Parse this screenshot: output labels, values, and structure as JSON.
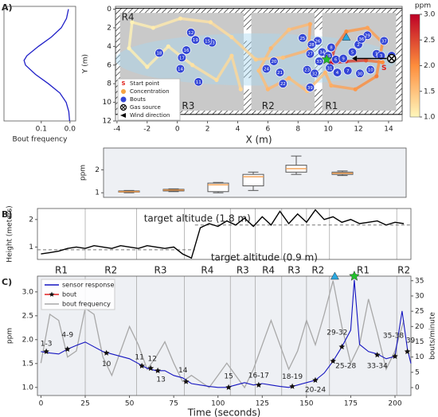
{
  "chart_data": [
    {
      "type": "line",
      "orientation": "vertical",
      "panel_label": "A)",
      "xlabel": "Bout frequency",
      "color": "#1f1fc8",
      "xlim": [
        0.23,
        -0.02
      ],
      "xticks": [
        0.1,
        {
          "value": 0,
          "label": "0.0"
        }
      ],
      "ylim": [
        12,
        -0.3
      ],
      "y": [
        0,
        1,
        2,
        3,
        4,
        5,
        5.5,
        6,
        7,
        8,
        9,
        10,
        11,
        12
      ],
      "values": [
        0.005,
        0.012,
        0.03,
        0.065,
        0.11,
        0.15,
        0.16,
        0.155,
        0.12,
        0.075,
        0.035,
        0.013,
        0.004,
        0.001
      ]
    },
    {
      "type": "map",
      "xlabel": "X (m)",
      "ylabel": "Y (m)",
      "xlim": [
        -4.1,
        14.9
      ],
      "xticks": [
        -4,
        -2,
        0,
        2,
        4,
        6,
        8,
        10,
        12,
        14
      ],
      "ylim": [
        12,
        -0.3
      ],
      "yticks": [
        0,
        2,
        4,
        6,
        8,
        10,
        12
      ],
      "rooms": [
        "R4",
        "R3",
        "R2",
        "R1"
      ],
      "trajectory": {
        "name": "Concentration",
        "color": "#f5a442",
        "x": [
          13.6,
          12.5,
          11.2,
          10.2,
          10.4,
          11.2,
          12.6,
          13.6,
          13.2,
          11.8,
          10.2,
          9.8,
          8.6,
          7.4,
          6.0,
          5.4,
          6.2,
          7.4,
          8.8,
          8.7,
          7.0,
          5.2,
          3.6,
          2.2,
          0.2,
          -1.6,
          -3.0,
          -3.2,
          -2.0,
          -0.6,
          1.0,
          2.6,
          3.6,
          4.2
        ],
        "y": [
          5.7,
          5.5,
          5.6,
          5.8,
          4.2,
          2.4,
          2.0,
          3.6,
          7.2,
          8.6,
          8.2,
          6.8,
          8.8,
          7.4,
          8.6,
          6.6,
          4.2,
          2.2,
          1.6,
          4.4,
          5.2,
          5.4,
          3.0,
          1.4,
          1.0,
          2.0,
          1.4,
          4.2,
          6.2,
          4.0,
          6.0,
          7.6,
          5.0,
          8.6
        ],
        "values": [
          2.0,
          2.4,
          2.7,
          2.9,
          2.3,
          2.0,
          1.8,
          1.9,
          2.1,
          1.9,
          1.7,
          1.6,
          1.5,
          1.6,
          1.6,
          1.5,
          1.6,
          1.5,
          1.7,
          1.8,
          1.5,
          1.4,
          1.3,
          1.2,
          1.15,
          1.1,
          1.05,
          1.05,
          1.1,
          1.1,
          1.2,
          1.25,
          1.3,
          1.3
        ]
      },
      "bouts": {
        "name": "Bouts",
        "color": "#3346d6",
        "labels": [
          1,
          2,
          3,
          4,
          5,
          6,
          7,
          8,
          9,
          10,
          11,
          12,
          13,
          14,
          15,
          16,
          17,
          18,
          19,
          20,
          21,
          22,
          23,
          24,
          25,
          26,
          27,
          28,
          29,
          30,
          31,
          32,
          33,
          34,
          35,
          36,
          37,
          38,
          39
        ],
        "x": [
          13.2,
          12.0,
          13.5,
          10.6,
          11.6,
          10.5,
          11.3,
          10.2,
          11.0,
          12.8,
          1.4,
          0.9,
          2.3,
          0.2,
          2.0,
          0.6,
          0.3,
          -1.2,
          1.2,
          6.4,
          6.8,
          7.0,
          8.6,
          5.9,
          8.3,
          9.3,
          8.8,
          8.9,
          12.6,
          12.1,
          10.1,
          9.1,
          9.4,
          9.6,
          10.0,
          12.2,
          13.7,
          14.2,
          8.8
        ],
        "y": [
          4.8,
          3.8,
          5.0,
          6.8,
          4.6,
          5.4,
          6.6,
          4.1,
          5.3,
          6.5,
          7.8,
          2.5,
          3.6,
          6.4,
          3.4,
          4.4,
          5.2,
          4.7,
          3.3,
          5.6,
          6.8,
          8.0,
          6.5,
          6.4,
          3.1,
          3.4,
          4.8,
          3.8,
          2.8,
          6.9,
          6.3,
          6.9,
          5.6,
          4.6,
          5.0,
          3.2,
          3.4,
          5.0,
          8.4
        ]
      },
      "start": {
        "name": "Start point",
        "label": "S",
        "color": "#e0201a",
        "x": 13.7,
        "y": 6.3
      },
      "source": {
        "name": "Gas source",
        "x": 14.2,
        "y": 5.3
      },
      "wind": {
        "name": "Wind direction"
      },
      "highlights": {
        "triangle": {
          "x": 11.2,
          "y": 3.0,
          "color": "#2aa8e0"
        },
        "star": {
          "x": 9.9,
          "y": 5.4,
          "color": "#22c02a"
        }
      },
      "colorbar": {
        "title": "ppm",
        "lim": [
          1,
          3
        ],
        "colors": [
          "#fff7bc",
          "#fd8d3c",
          "#bd0026"
        ],
        "ticks": [
          {
            "value": 1,
            "label": "1.0"
          },
          1.5,
          {
            "value": 2,
            "label": "2.0"
          },
          2.5,
          {
            "value": 3,
            "label": "3.0"
          }
        ]
      }
    },
    {
      "type": "box",
      "ylabel": "ppm",
      "ylim": [
        0.8,
        2.95
      ],
      "yticks": [
        1,
        2
      ],
      "color": "#f39c4a",
      "categories": [
        null,
        null,
        null,
        null,
        null,
        null
      ],
      "boxes": [
        {
          "min": 1.0,
          "q1": 1.03,
          "median": 1.05,
          "q3": 1.08,
          "max": 1.1
        },
        {
          "min": 1.05,
          "q1": 1.08,
          "median": 1.12,
          "q3": 1.15,
          "max": 1.17
        },
        {
          "min": 1.0,
          "q1": 1.05,
          "median": 1.35,
          "q3": 1.42,
          "max": 1.45
        },
        {
          "min": 1.1,
          "q1": 1.3,
          "median": 1.7,
          "q3": 1.8,
          "max": 1.9
        },
        {
          "min": 1.8,
          "q1": 1.9,
          "median": 2.05,
          "q3": 2.2,
          "max": 2.6
        },
        {
          "min": 1.75,
          "q1": 1.8,
          "median": 1.85,
          "q3": 1.9,
          "max": 1.95
        }
      ]
    },
    {
      "type": "line",
      "panel_label": "B)",
      "ylabel": "Height (meters)",
      "color": "#000000",
      "xlim": [
        -2,
        209
      ],
      "ylim": [
        0.55,
        2.4
      ],
      "yticks": [
        1,
        2
      ],
      "x": [
        0,
        5,
        10,
        15,
        20,
        25,
        30,
        35,
        40,
        45,
        50,
        55,
        60,
        65,
        70,
        75,
        80,
        85,
        90,
        95,
        100,
        105,
        110,
        115,
        120,
        125,
        130,
        135,
        140,
        145,
        150,
        155,
        160,
        165,
        170,
        175,
        180,
        185,
        190,
        195,
        200,
        205
      ],
      "values": [
        0.75,
        0.8,
        0.85,
        0.95,
        1.0,
        0.95,
        1.05,
        1.0,
        0.95,
        1.05,
        1.0,
        0.95,
        1.05,
        1.0,
        0.95,
        1.0,
        0.75,
        0.6,
        1.7,
        1.85,
        1.75,
        1.95,
        1.8,
        2.05,
        1.75,
        2.1,
        1.8,
        2.3,
        1.85,
        2.2,
        1.9,
        2.35,
        2.0,
        2.1,
        1.9,
        2.0,
        1.85,
        1.9,
        1.95,
        1.8,
        1.9,
        1.85
      ],
      "targets": [
        {
          "label": "target altitude (0.9 m)",
          "value": 0.9,
          "x": [
            -2,
            87
          ]
        },
        {
          "label": "target altitude (1.8 m)",
          "value": 1.8,
          "x": [
            87,
            209
          ]
        }
      ],
      "regions": {
        "labels": [
          "R1",
          "R2",
          "R3",
          "R4",
          "R3",
          "R4",
          "R3",
          "R2",
          "R1",
          "R2"
        ],
        "bounds": [
          -2,
          25,
          54,
          81,
          107,
          121,
          136,
          150,
          163,
          201,
          209
        ]
      }
    },
    {
      "type": "line",
      "panel_label": "C)",
      "xlabel": "Time (seconds)",
      "ylabel": "ppm",
      "y2label": "bouts/minute",
      "legend": "upper left",
      "xlim": [
        -2,
        209
      ],
      "xticks": [
        0,
        25,
        50,
        75,
        100,
        125,
        150,
        175,
        200
      ],
      "ylim": [
        0.83,
        3.33
      ],
      "yticks": [
        {
          "value": 1,
          "label": "1.0"
        },
        1.5,
        {
          "value": 2,
          "label": "2.0"
        },
        2.5,
        {
          "value": 3,
          "label": "3.0"
        }
      ],
      "y2lim": [
        -2.6,
        36.5
      ],
      "y2ticks": [
        0,
        5,
        10,
        15,
        20,
        25,
        30,
        35
      ],
      "markers": {
        "triangle": 166,
        "star": 177
      },
      "series": [
        {
          "name": "sensor response",
          "color": "#1414c0",
          "x": [
            0,
            5,
            10,
            15,
            20,
            25,
            30,
            35,
            40,
            45,
            50,
            55,
            60,
            65,
            70,
            75,
            80,
            85,
            90,
            95,
            100,
            105,
            110,
            115,
            120,
            125,
            130,
            135,
            140,
            145,
            150,
            155,
            160,
            165,
            170,
            175,
            177,
            180,
            185,
            190,
            195,
            200,
            204,
            207,
            209
          ],
          "values": [
            1.75,
            1.72,
            1.7,
            1.8,
            1.88,
            1.95,
            1.85,
            1.75,
            1.7,
            1.65,
            1.6,
            1.5,
            1.4,
            1.35,
            1.35,
            1.25,
            1.2,
            1.08,
            1.05,
            1.02,
            1.0,
            1.0,
            1.05,
            1.1,
            1.05,
            1.08,
            1.05,
            1.02,
            1.0,
            1.05,
            1.1,
            1.15,
            1.3,
            1.55,
            1.85,
            2.2,
            3.25,
            1.9,
            1.75,
            1.7,
            1.6,
            1.65,
            2.6,
            1.8,
            1.5
          ]
        },
        {
          "name": "bout",
          "color": "#e02020",
          "labels": [
            "1-3",
            "4-9",
            "10",
            "11",
            "12",
            "13",
            "14",
            "15",
            "16-17",
            "18-19",
            "20-24",
            "25-28",
            "29-32",
            "33-34",
            "35-38",
            "39"
          ],
          "x": [
            3,
            15,
            37,
            57,
            62,
            66,
            82,
            106,
            123,
            142,
            155,
            165,
            170,
            190,
            200,
            207
          ],
          "values": [
            1.75,
            1.8,
            1.72,
            1.45,
            1.4,
            1.35,
            1.12,
            1.0,
            1.05,
            1.02,
            1.15,
            1.55,
            1.85,
            1.68,
            1.65,
            1.75
          ]
        },
        {
          "name": "bout frequency",
          "color": "#a8a8a8",
          "axis": "y2",
          "x": [
            0,
            5,
            10,
            15,
            20,
            25,
            30,
            35,
            40,
            45,
            50,
            55,
            60,
            65,
            70,
            75,
            80,
            85,
            90,
            95,
            100,
            105,
            110,
            115,
            120,
            125,
            130,
            135,
            140,
            145,
            150,
            155,
            160,
            165,
            170,
            175,
            180,
            185,
            190,
            195,
            200,
            205
          ],
          "values": [
            8,
            24,
            22,
            10,
            12,
            26,
            24,
            10,
            4,
            12,
            20,
            14,
            6,
            10,
            15,
            8,
            2,
            4,
            2,
            0,
            4,
            8,
            4,
            0,
            6,
            14,
            22,
            14,
            6,
            12,
            22,
            14,
            24,
            35,
            20,
            8,
            14,
            29,
            18,
            6,
            12,
            22
          ]
        }
      ]
    }
  ]
}
